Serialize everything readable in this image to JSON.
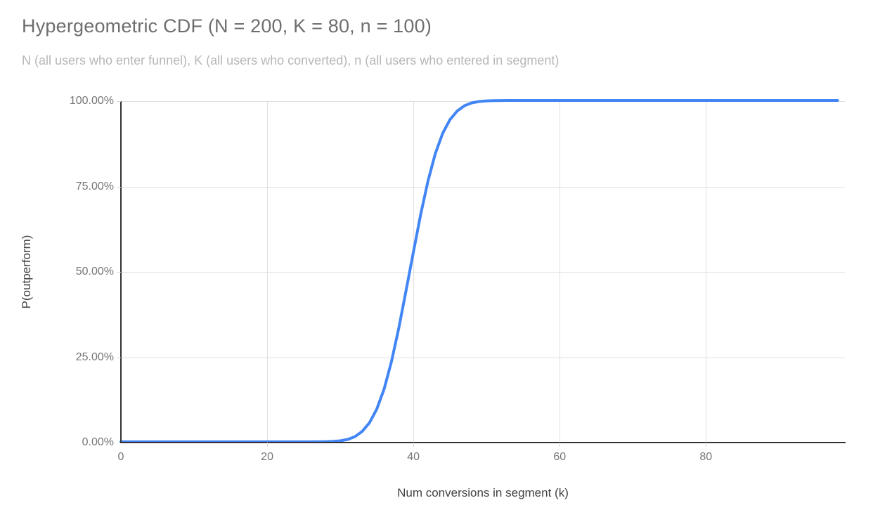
{
  "chart_data": {
    "type": "line",
    "title": "Hypergeometric CDF (N = 200, K = 80, n = 100)",
    "subtitle": "N (all users who enter funnel), K (all users who converted), n (all users who entered in segment)",
    "xlabel": "Num conversions in segment (k)",
    "ylabel": "P(outperform)",
    "parameters": {
      "N": 200,
      "K": 80,
      "n": 100
    },
    "xlim": [
      0,
      99
    ],
    "ylim": [
      0,
      1
    ],
    "x_ticks": [
      0,
      20,
      40,
      60,
      80
    ],
    "x_tick_labels": [
      "0",
      "20",
      "40",
      "60",
      "80"
    ],
    "y_ticks": [
      0,
      0.25,
      0.5,
      0.75,
      1
    ],
    "y_tick_labels": [
      "0.00%",
      "25.00%",
      "50.00%",
      "75.00%",
      "100.00%"
    ],
    "grid": true,
    "legend": "none",
    "series": [
      {
        "name": "P(outperform)",
        "x_start": 0,
        "x_step": 1,
        "values": [
          0,
          0,
          0,
          0,
          0,
          0,
          0,
          0,
          0,
          0,
          0,
          0,
          0,
          0,
          0,
          0,
          0,
          0,
          0,
          0,
          0,
          0,
          0,
          0,
          0,
          0,
          0.0001,
          0.0002,
          0.0005,
          0.0013,
          0.0031,
          0.007,
          0.0152,
          0.0306,
          0.0562,
          0.0963,
          0.1552,
          0.2353,
          0.3332,
          0.4438,
          0.5562,
          0.6668,
          0.7647,
          0.8448,
          0.9037,
          0.9438,
          0.9694,
          0.9848,
          0.993,
          0.9969,
          0.9987,
          0.9995,
          0.9998,
          0.9999,
          1,
          1,
          1,
          1,
          1,
          1,
          1,
          1,
          1,
          1,
          1,
          1,
          1,
          1,
          1,
          1,
          1,
          1,
          1,
          1,
          1,
          1,
          1,
          1,
          1,
          1,
          1,
          1,
          1,
          1,
          1,
          1,
          1,
          1,
          1,
          1,
          1,
          1,
          1,
          1,
          1,
          1,
          1,
          1,
          1
        ]
      }
    ],
    "colors": {
      "line": "#4285f4",
      "gridline": "#e0e0e0",
      "axis": "#333333",
      "tick_label": "#757575",
      "axis_title": "#424242",
      "title": "#6e6e6e",
      "subtitle": "#b7b7b7",
      "background": "#ffffff"
    }
  }
}
